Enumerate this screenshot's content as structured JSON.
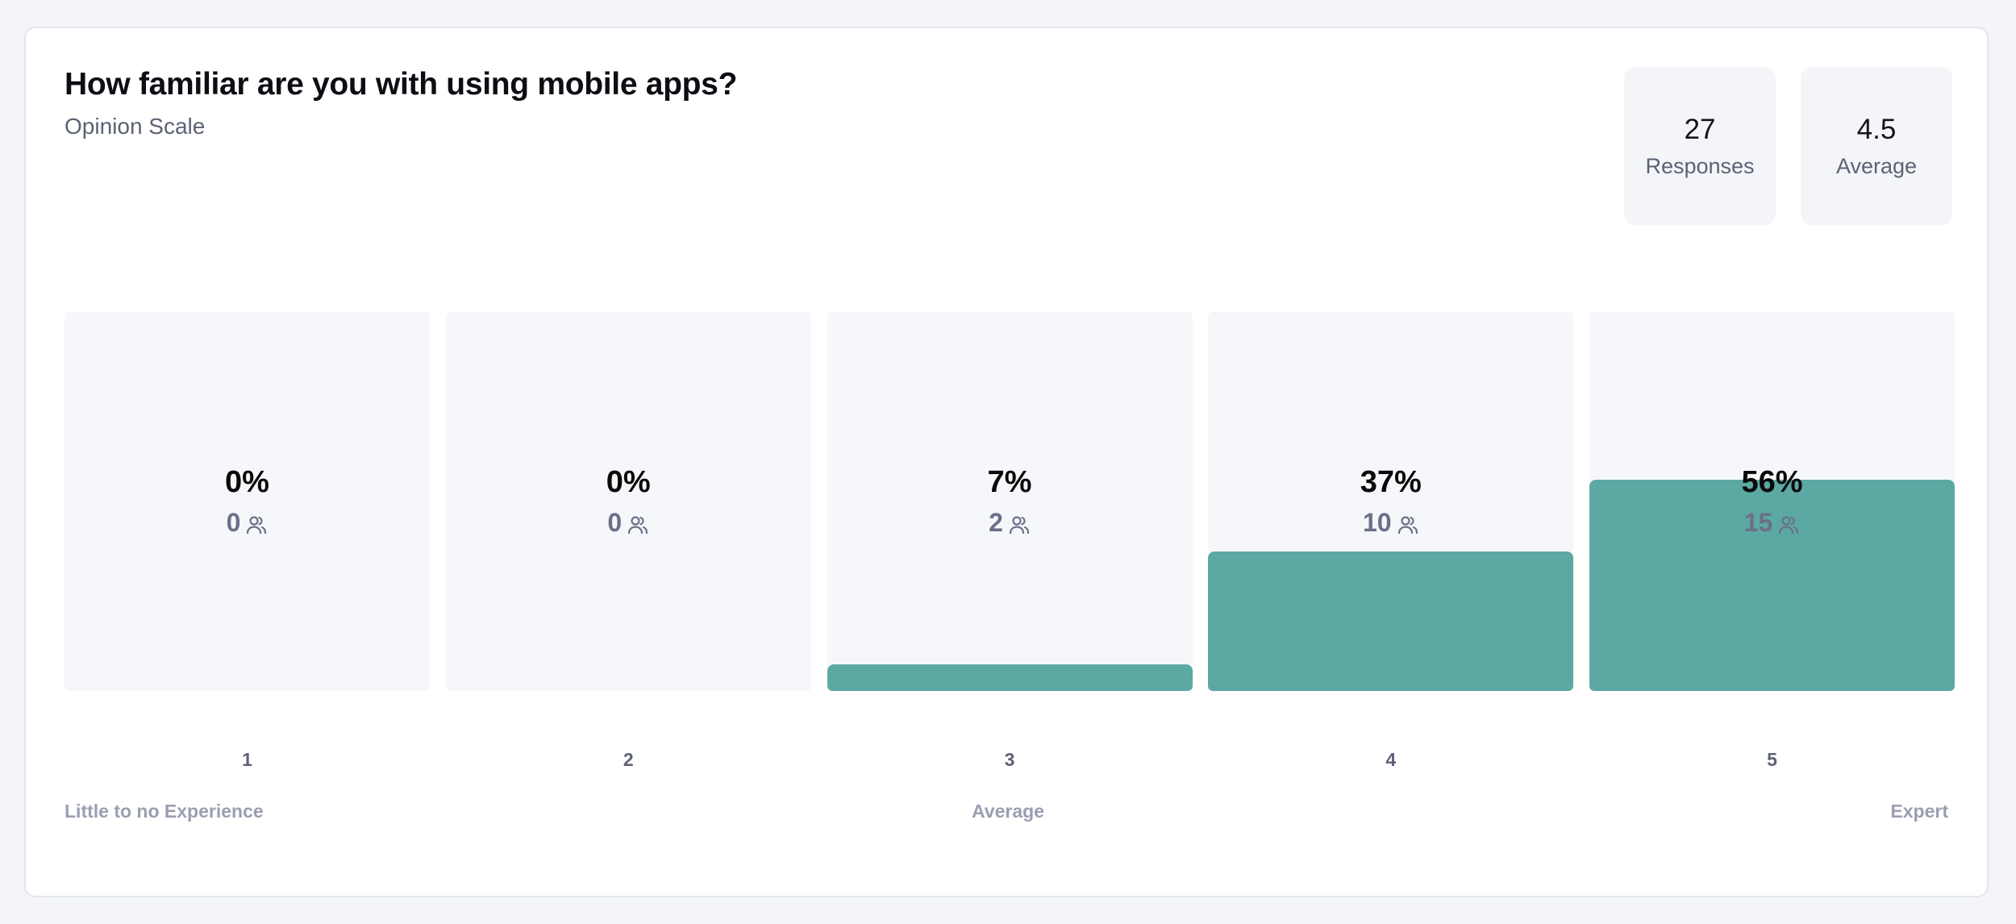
{
  "question": {
    "title": "How familiar are you with using mobile apps?",
    "type_label": "Opinion Scale"
  },
  "stats": {
    "responses_value": "27",
    "responses_label": "Responses",
    "average_value": "4.5",
    "average_label": "Average"
  },
  "chart_data": {
    "type": "bar",
    "categories": [
      "1",
      "2",
      "3",
      "4",
      "5"
    ],
    "values": [
      0,
      0,
      7,
      37,
      56
    ],
    "counts": [
      0,
      0,
      2,
      10,
      15
    ],
    "percent_labels": [
      "0%",
      "0%",
      "7%",
      "37%",
      "56%"
    ],
    "count_labels": [
      "0",
      "0",
      "2",
      "10",
      "15"
    ],
    "ylim": [
      0,
      100
    ],
    "scale_labels": {
      "low": "Little to no Experience",
      "mid": "Average",
      "high": "Expert"
    },
    "title": "",
    "xlabel": "",
    "ylabel": ""
  },
  "colors": {
    "fill": "#5ca8a3",
    "track": "#f6f7fa"
  },
  "icons": {
    "count_icon": "people-icon"
  }
}
